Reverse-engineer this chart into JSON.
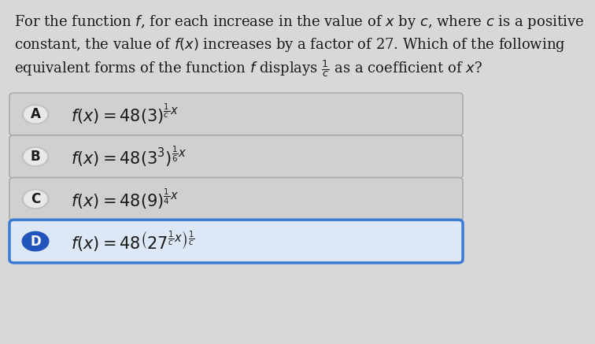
{
  "bg_color": "#d8d8d8",
  "question_text_lines": [
    "For the function $f$, for each increase in the value of $x$ by $c$, where $c$ is a positive",
    "constant, the value of $f(x)$ increases by a factor of 27. Which of the following",
    "equivalent forms of the function $f$ displays $\\frac{1}{c}$ as a coefficient of $x$?"
  ],
  "options": [
    {
      "label": "A",
      "formula": "$f(x) = 48(3)^{\\frac{1}{c}x}$",
      "selected": false,
      "box_color": "#d0d0d0",
      "border_color": "#aaaaaa",
      "label_bg": "#e0e0e0"
    },
    {
      "label": "B",
      "formula": "$f(x) = 48(3^3)^{\\frac{1}{6}x}$",
      "selected": false,
      "box_color": "#d0d0d0",
      "border_color": "#aaaaaa",
      "label_bg": "#e0e0e0"
    },
    {
      "label": "C",
      "formula": "$f(x) = 48(9)^{\\frac{1}{4}x}$",
      "selected": false,
      "box_color": "#d0d0d0",
      "border_color": "#aaaaaa",
      "label_bg": "#e0e0e0"
    },
    {
      "label": "D",
      "formula": "$f(x) = 48\\left(27^{\\frac{1}{c}x}\\right)^{\\frac{1}{c}}$",
      "selected": true,
      "box_color": "#dce8f5",
      "border_color": "#3a7bd5",
      "label_bg": "#2255bb"
    }
  ],
  "text_color": "#1a1a1a",
  "font_size_question": 13,
  "font_size_formula": 15,
  "font_size_label": 12
}
